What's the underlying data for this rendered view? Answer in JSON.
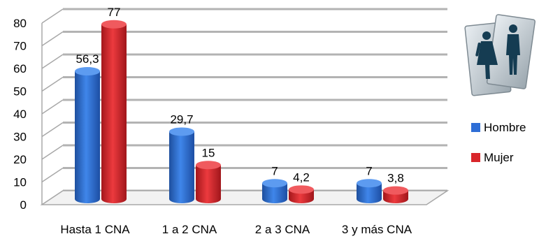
{
  "chart_data": {
    "type": "bar",
    "style": "3d-cylinder",
    "categories": [
      "Hasta 1 CNA",
      "1 a 2 CNA",
      "2 a 3 CNA",
      "3 y más CNA"
    ],
    "series": [
      {
        "name": "Hombre",
        "values": [
          56.3,
          29.7,
          7,
          7
        ],
        "labels": [
          "56,3",
          "29,7",
          "7",
          "7"
        ],
        "color": "#2e6ed6"
      },
      {
        "name": "Mujer",
        "values": [
          77,
          15,
          4.2,
          3.8
        ],
        "labels": [
          "77",
          "15",
          "4,2",
          "3,8"
        ],
        "color": "#d9262b"
      }
    ],
    "ylim": [
      0,
      80
    ],
    "yticks": [
      0,
      10,
      20,
      30,
      40,
      50,
      60,
      70,
      80
    ],
    "grid": true,
    "legend_position": "right",
    "legend_icon": "restroom-sign-icon"
  }
}
